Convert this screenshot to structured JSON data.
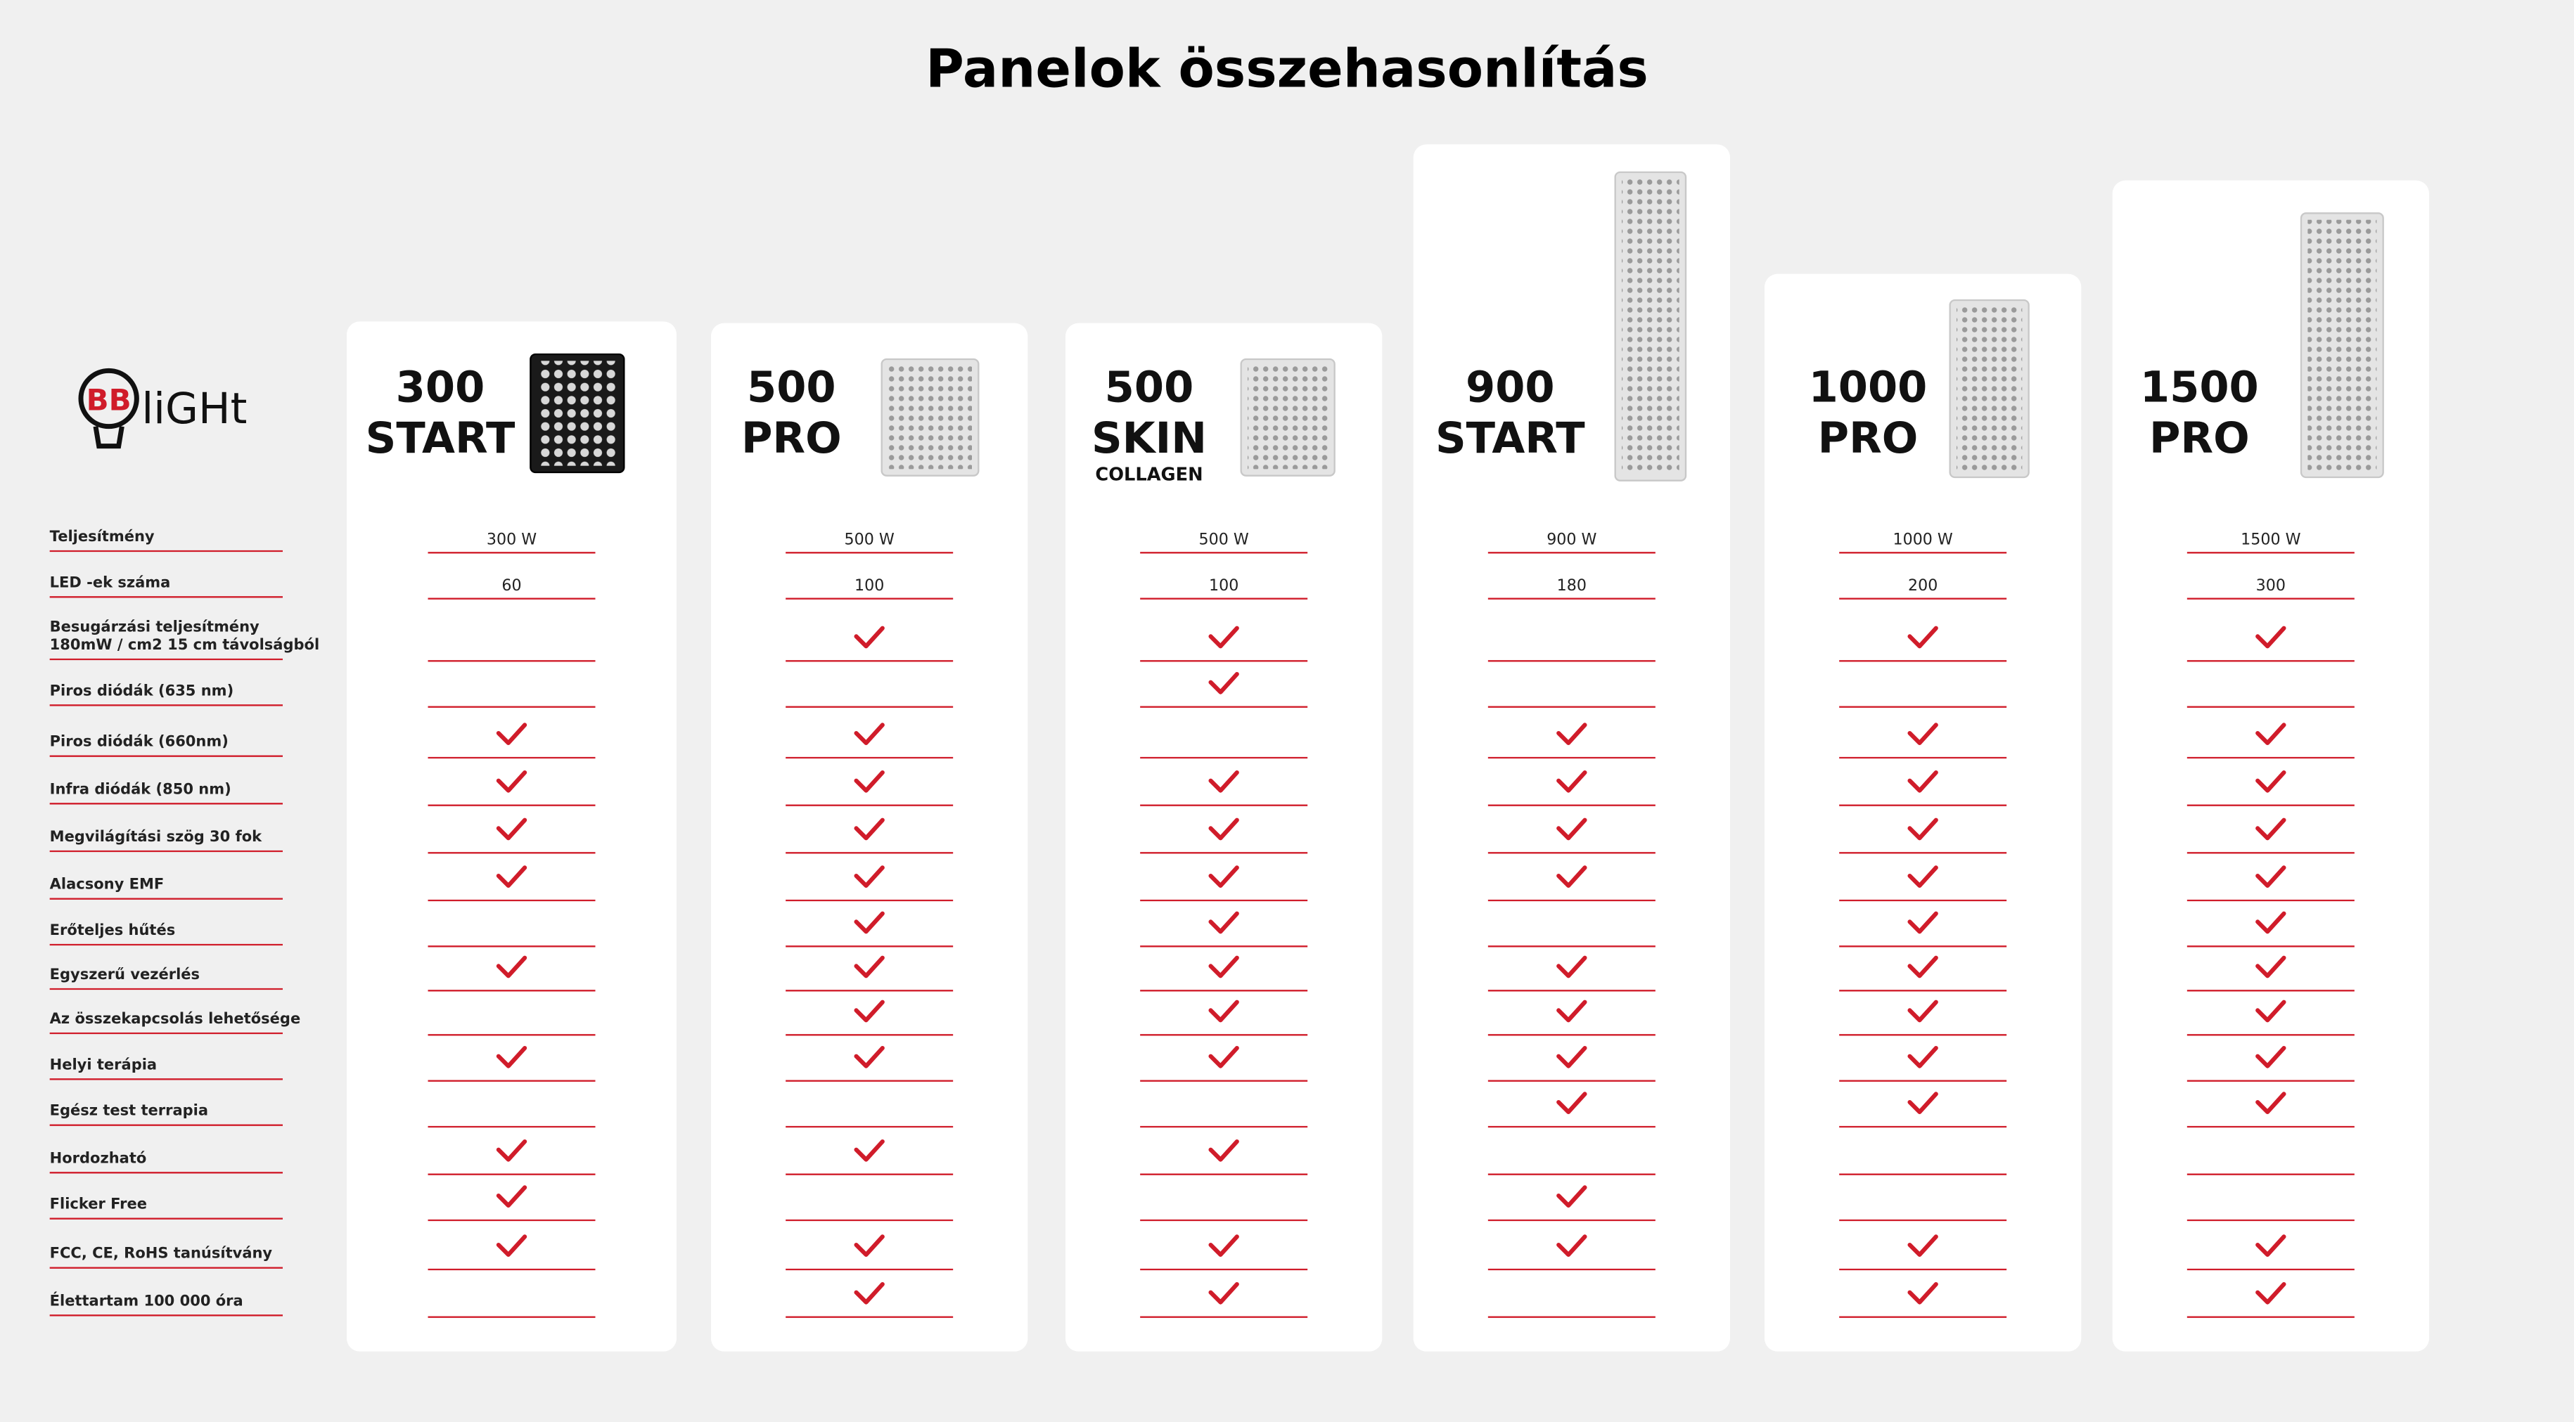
{
  "title": "Panelok összehasonlítás",
  "logo": {
    "mark": "BB",
    "text": "liGHt"
  },
  "features": [
    "Teljesítmény",
    "LED -ek száma",
    [
      "Besugárzási teljesítmény",
      "180mW / cm2 15 cm távolságból"
    ],
    "Piros diódák (635 nm)",
    "Piros diódák (660nm)",
    "Infra diódák (850 nm)",
    "Megvilágítási szög 30 fok",
    "Alacsony EMF",
    "Erőteljes hűtés",
    "Egyszerű vezérlés",
    "Az összekapcsolás lehetősége",
    "Helyi terápia",
    "Egész test terrapia",
    "Hordozható",
    "Flicker Free",
    "FCC, CE, RoHS tanúsítvány",
    "Élettartam 100 000 óra"
  ],
  "products": [
    {
      "name": [
        "300",
        "START"
      ],
      "cells": [
        "300 W",
        "60",
        false,
        false,
        true,
        true,
        true,
        true,
        false,
        true,
        false,
        true,
        false,
        true,
        true,
        true,
        false
      ]
    },
    {
      "name": [
        "500",
        "PRO"
      ],
      "cells": [
        "500 W",
        "100",
        true,
        false,
        true,
        true,
        true,
        true,
        true,
        true,
        true,
        true,
        false,
        true,
        false,
        true,
        true
      ]
    },
    {
      "name": [
        "500",
        "SKIN"
      ],
      "sub": "COLLAGEN",
      "cells": [
        "500 W",
        "100",
        true,
        true,
        false,
        true,
        true,
        true,
        true,
        true,
        true,
        true,
        false,
        true,
        false,
        true,
        true
      ]
    },
    {
      "name": [
        "900",
        "START"
      ],
      "cells": [
        "900 W",
        "180",
        false,
        false,
        true,
        true,
        true,
        true,
        false,
        true,
        true,
        true,
        true,
        false,
        true,
        true,
        false
      ]
    },
    {
      "name": [
        "1000",
        "PRO"
      ],
      "cells": [
        "1000 W",
        "200",
        true,
        false,
        true,
        true,
        true,
        true,
        true,
        true,
        true,
        true,
        true,
        false,
        false,
        true,
        true
      ]
    },
    {
      "name": [
        "1500",
        "PRO"
      ],
      "cells": [
        "1500 W",
        "300",
        true,
        false,
        true,
        true,
        true,
        true,
        true,
        true,
        true,
        true,
        true,
        false,
        false,
        true,
        true
      ]
    }
  ]
}
